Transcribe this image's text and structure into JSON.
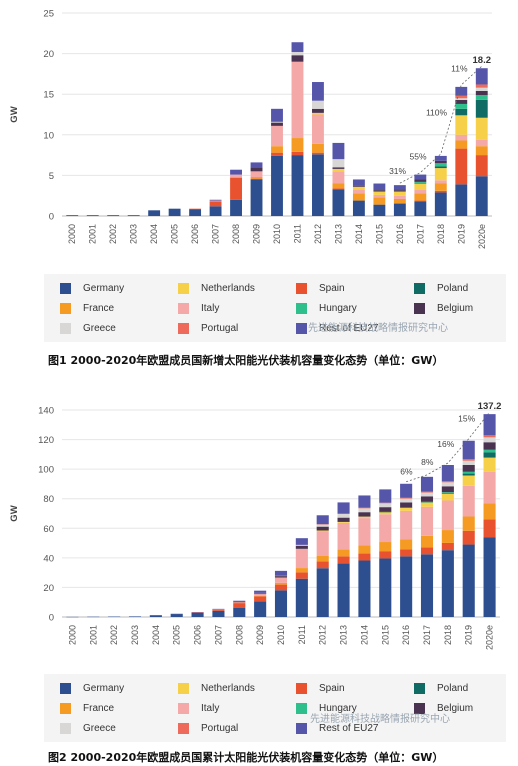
{
  "watermark": "先进能源科技战略情报研究中心",
  "colors": {
    "Germany": "#2e4f8f",
    "Netherlands": "#f7d04a",
    "Spain": "#e8522e",
    "Poland": "#0f6b63",
    "France": "#f59a23",
    "Italy": "#f4a8a8",
    "Hungary": "#2fbf8c",
    "Belgium": "#4a3350",
    "Greece": "#d9d6d6",
    "Portugal": "#ee6a5b",
    "Rest of EU27": "#5555aa"
  },
  "chart_data": [
    {
      "type": "bar",
      "stacked": true,
      "caption": "图1 2000-2020年欧盟成员国新增太阳能光伏装机容量变化态势（单位：GW）",
      "ylabel": "GW",
      "ylim": [
        0,
        25
      ],
      "yticks": [
        0,
        5,
        10,
        15,
        20,
        25
      ],
      "categories": [
        "2000",
        "2001",
        "2002",
        "2003",
        "2004",
        "2005",
        "2006",
        "2007",
        "2008",
        "2009",
        "2010",
        "2011",
        "2012",
        "2013",
        "2014",
        "2015",
        "2016",
        "2017",
        "2018",
        "2019",
        "2020e"
      ],
      "legend": [
        "Germany",
        "Netherlands",
        "Spain",
        "Poland",
        "France",
        "Italy",
        "Hungary",
        "Belgium",
        "Greece",
        "Portugal",
        "Rest of EU27"
      ],
      "series": [
        {
          "name": "Germany",
          "values": [
            0.1,
            0.1,
            0.1,
            0.1,
            0.7,
            0.9,
            0.8,
            1.2,
            2.0,
            4.5,
            7.4,
            7.5,
            7.6,
            3.3,
            1.9,
            1.4,
            1.5,
            1.8,
            2.9,
            3.9,
            4.9
          ]
        },
        {
          "name": "Spain",
          "values": [
            0,
            0,
            0,
            0,
            0,
            0,
            0.1,
            0.6,
            2.7,
            0.1,
            0.4,
            0.4,
            0.2,
            0.1,
            0,
            0,
            0.1,
            0.1,
            0.2,
            4.4,
            2.6
          ]
        },
        {
          "name": "France",
          "values": [
            0,
            0,
            0,
            0,
            0,
            0,
            0,
            0,
            0.1,
            0.2,
            0.8,
            1.7,
            1.1,
            0.6,
            0.9,
            0.9,
            0.5,
            0.9,
            0.9,
            1.0,
            1.1
          ]
        },
        {
          "name": "Italy",
          "values": [
            0,
            0,
            0,
            0,
            0,
            0,
            0,
            0.1,
            0.3,
            0.7,
            2.5,
            9.4,
            3.6,
            1.5,
            0.4,
            0.3,
            0.4,
            0.4,
            0.4,
            0.7,
            0.8
          ]
        },
        {
          "name": "Netherlands",
          "values": [
            0,
            0,
            0,
            0,
            0,
            0,
            0,
            0,
            0,
            0,
            0,
            0,
            0.2,
            0.3,
            0.4,
            0.4,
            0.5,
            0.8,
            1.5,
            2.4,
            2.7
          ]
        },
        {
          "name": "Poland",
          "values": [
            0,
            0,
            0,
            0,
            0,
            0,
            0,
            0,
            0,
            0,
            0,
            0,
            0,
            0,
            0,
            0.1,
            0.1,
            0.1,
            0.2,
            0.8,
            2.2
          ]
        },
        {
          "name": "Hungary",
          "values": [
            0,
            0,
            0,
            0,
            0,
            0,
            0,
            0,
            0,
            0,
            0,
            0,
            0,
            0,
            0,
            0,
            0,
            0.1,
            0.4,
            0.6,
            0.6
          ]
        },
        {
          "name": "Belgium",
          "values": [
            0,
            0,
            0,
            0,
            0,
            0,
            0,
            0,
            0,
            0.5,
            0.4,
            0.8,
            0.5,
            0.2,
            0.1,
            0.1,
            0.2,
            0.3,
            0.3,
            0.5,
            0.5
          ]
        },
        {
          "name": "Greece",
          "values": [
            0,
            0,
            0,
            0,
            0,
            0,
            0,
            0,
            0,
            0,
            0.1,
            0.4,
            1.0,
            1.0,
            0,
            0,
            0,
            0,
            0,
            0.2,
            0.4
          ]
        },
        {
          "name": "Portugal",
          "values": [
            0,
            0,
            0,
            0,
            0,
            0,
            0,
            0,
            0,
            0,
            0,
            0,
            0,
            0,
            0,
            0,
            0,
            0,
            0,
            0.3,
            0.4
          ]
        },
        {
          "name": "Rest of EU27",
          "values": [
            0,
            0,
            0,
            0,
            0,
            0,
            0,
            0.1,
            0.6,
            0.6,
            1.6,
            1.2,
            2.3,
            2.0,
            0.8,
            0.8,
            0.5,
            0.6,
            0.6,
            1.1,
            2.0
          ]
        }
      ],
      "total_label": {
        "category": "2020e",
        "text": "18.2"
      },
      "annotations": [
        {
          "category": "2016",
          "text": "31%"
        },
        {
          "category": "2017",
          "text": "55%"
        },
        {
          "category": "2018",
          "text": "110%"
        },
        {
          "category": "2019",
          "text": "11%"
        }
      ]
    },
    {
      "type": "bar",
      "stacked": true,
      "caption": "图2 2000-2020年欧盟成员国累计太阳能光伏装机容量变化态势（单位：GW）",
      "ylabel": "GW",
      "ylim": [
        0,
        140
      ],
      "yticks": [
        0,
        20,
        40,
        60,
        80,
        100,
        120,
        140
      ],
      "categories": [
        "2000",
        "2001",
        "2002",
        "2003",
        "2004",
        "2005",
        "2006",
        "2007",
        "2008",
        "2009",
        "2010",
        "2011",
        "2012",
        "2013",
        "2014",
        "2015",
        "2016",
        "2017",
        "2018",
        "2019",
        "2020e"
      ],
      "legend": [
        "Germany",
        "Netherlands",
        "Spain",
        "Poland",
        "France",
        "Italy",
        "Hungary",
        "Belgium",
        "Greece",
        "Portugal",
        "Rest of EU27"
      ],
      "series": [
        {
          "name": "Germany",
          "values": [
            0.1,
            0.2,
            0.3,
            0.4,
            1.1,
            2.0,
            2.9,
            4.2,
            6.1,
            10.6,
            18.0,
            25.9,
            33.0,
            36.3,
            38.2,
            39.6,
            41.0,
            42.4,
            45.2,
            49.0,
            54.0
          ]
        },
        {
          "name": "Netherlands",
          "values": [
            0,
            0,
            0,
            0,
            0,
            0,
            0,
            0,
            0,
            0,
            0,
            0,
            0.4,
            0.6,
            1.0,
            1.5,
            2.0,
            2.9,
            4.5,
            7.0,
            9.5
          ]
        },
        {
          "name": "Spain",
          "values": [
            0,
            0,
            0,
            0,
            0,
            0,
            0.1,
            0.7,
            3.3,
            3.4,
            3.9,
            4.3,
            4.5,
            4.7,
            4.7,
            4.7,
            4.7,
            4.7,
            4.9,
            9.3,
            12.0
          ]
        },
        {
          "name": "Poland",
          "values": [
            0,
            0,
            0,
            0,
            0,
            0,
            0,
            0,
            0,
            0,
            0,
            0,
            0,
            0,
            0,
            0.1,
            0.2,
            0.3,
            0.5,
            1.3,
            3.5
          ]
        },
        {
          "name": "France",
          "values": [
            0,
            0,
            0,
            0,
            0,
            0,
            0,
            0.1,
            0.2,
            0.4,
            1.2,
            2.9,
            4.0,
            4.6,
            5.5,
            6.4,
            6.9,
            7.8,
            8.7,
            9.7,
            10.8
          ]
        },
        {
          "name": "Italy",
          "values": [
            0,
            0,
            0,
            0,
            0,
            0,
            0,
            0.1,
            0.4,
            1.1,
            3.6,
            13.0,
            16.6,
            18.1,
            18.5,
            18.8,
            19.2,
            19.6,
            20.0,
            20.7,
            21.5
          ]
        },
        {
          "name": "Hungary",
          "values": [
            0,
            0,
            0,
            0,
            0,
            0,
            0,
            0,
            0,
            0,
            0,
            0,
            0,
            0,
            0,
            0,
            0.1,
            0.2,
            0.6,
            1.2,
            1.8
          ]
        },
        {
          "name": "Belgium",
          "values": [
            0,
            0,
            0,
            0,
            0,
            0,
            0,
            0,
            0.1,
            0.6,
            1.0,
            2.0,
            2.6,
            2.9,
            3.0,
            3.2,
            3.4,
            3.7,
            4.0,
            4.6,
            5.1
          ]
        },
        {
          "name": "Greece",
          "values": [
            0,
            0,
            0,
            0,
            0,
            0,
            0,
            0,
            0,
            0.1,
            0.2,
            0.6,
            1.5,
            2.5,
            2.6,
            2.6,
            2.6,
            2.6,
            2.7,
            2.9,
            3.3
          ]
        },
        {
          "name": "Portugal",
          "values": [
            0,
            0,
            0,
            0,
            0,
            0,
            0,
            0,
            0.1,
            0.1,
            0.1,
            0.1,
            0.2,
            0.3,
            0.4,
            0.4,
            0.5,
            0.6,
            0.7,
            1.0,
            1.4
          ]
        },
        {
          "name": "Rest of EU27",
          "values": [
            0,
            0,
            0,
            0,
            0.1,
            0.2,
            0.3,
            0.4,
            0.8,
            1.5,
            3.2,
            4.5,
            6.0,
            7.5,
            8.3,
            9.0,
            9.5,
            10.0,
            11.0,
            12.5,
            14.3
          ]
        }
      ],
      "total_label": {
        "category": "2020e",
        "text": "137.2"
      },
      "annotations": [
        {
          "category": "2016",
          "text": "6%"
        },
        {
          "category": "2017",
          "text": "8%"
        },
        {
          "category": "2018",
          "text": "16%"
        },
        {
          "category": "2019",
          "text": "15%"
        }
      ]
    }
  ]
}
